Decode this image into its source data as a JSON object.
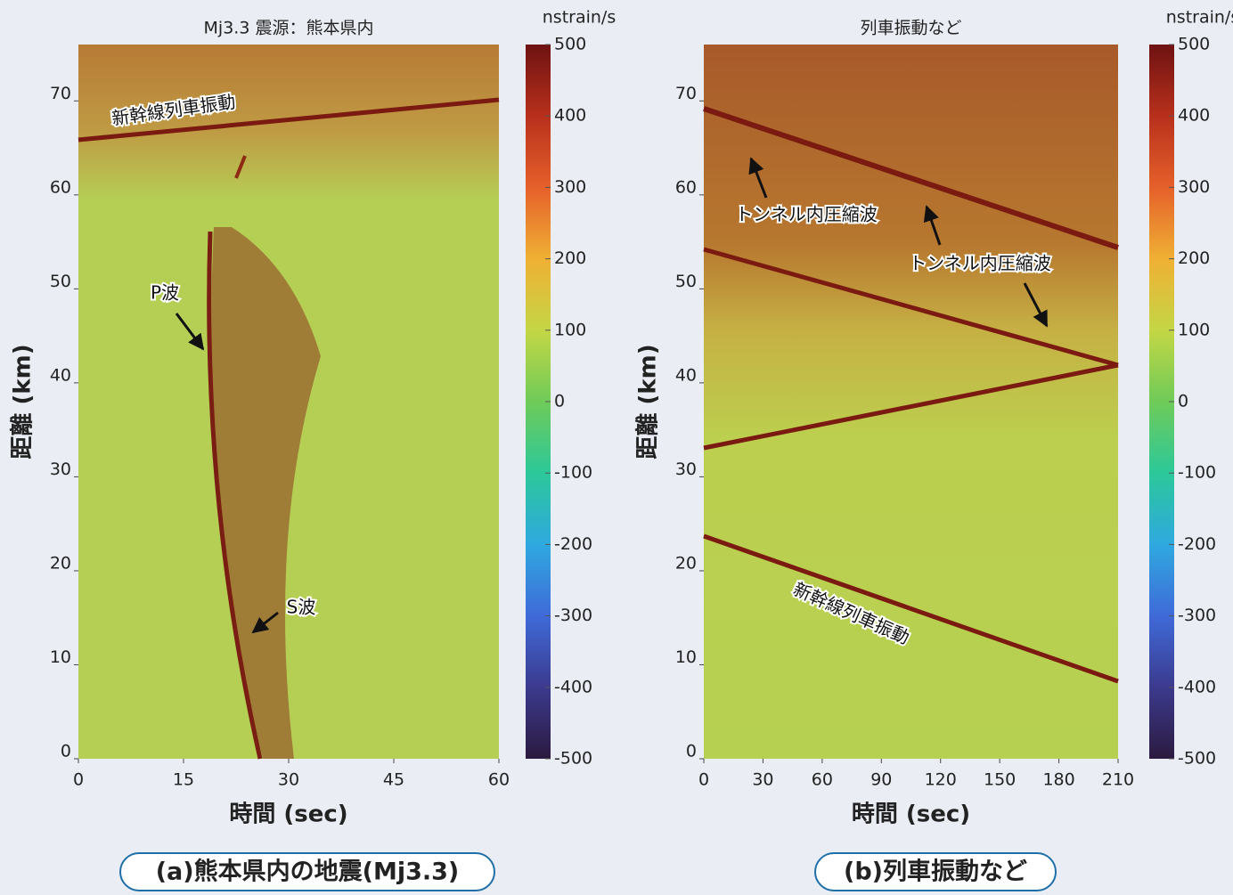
{
  "chart_data": [
    {
      "type": "heatmap",
      "title": "Mj3.3 震源：熊本県内",
      "xlabel": "時間 (sec)",
      "ylabel": "距離 (km)",
      "xlim": [
        0,
        60
      ],
      "xticks": [
        0,
        15,
        30,
        45,
        60
      ],
      "ylim": [
        0,
        76
      ],
      "yticks": [
        0,
        10,
        20,
        30,
        40,
        50,
        60,
        70
      ],
      "colorbar": {
        "label": "nstrain/s",
        "lim": [
          -500,
          500
        ],
        "ticks": [
          500,
          400,
          300,
          200,
          100,
          0,
          -100,
          -200,
          -300,
          -400,
          -500
        ]
      },
      "annotations": [
        "新幹線列車振動",
        "P波",
        "S波"
      ],
      "caption": "(a)熊本県内の地震(Mj3.3)"
    },
    {
      "type": "heatmap",
      "title": "列車振動など",
      "xlabel": "時間 (sec)",
      "ylabel": "距離 (km)",
      "xlim": [
        0,
        210
      ],
      "xticks": [
        0,
        30,
        60,
        90,
        120,
        150,
        180,
        210
      ],
      "ylim": [
        0,
        76
      ],
      "yticks": [
        0,
        10,
        20,
        30,
        40,
        50,
        60,
        70
      ],
      "colorbar": {
        "label": "nstrain/s",
        "lim": [
          -500,
          500
        ],
        "ticks": [
          500,
          400,
          300,
          200,
          100,
          0,
          -100,
          -200,
          -300,
          -400,
          -500
        ]
      },
      "annotations": [
        "トンネル内圧縮波",
        "トンネル内圧縮波",
        "新幹線列車振動"
      ],
      "caption": "(b)列車振動など"
    }
  ]
}
